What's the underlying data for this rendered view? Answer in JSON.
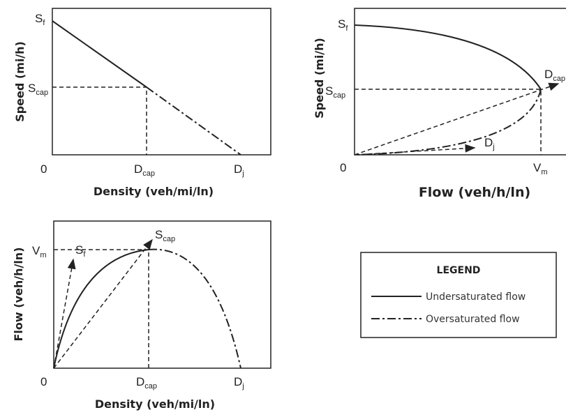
{
  "panels": [
    {
      "y_axis_label": "Speed (mi/h)",
      "x_axis_label": "Density (veh/mi/ln)",
      "origin": "0",
      "labels": [
        {
          "main": "S",
          "sub": "f"
        },
        {
          "main": "S",
          "sub": "cap"
        },
        {
          "main": "D",
          "sub": "cap"
        },
        {
          "main": "D",
          "sub": "j"
        }
      ]
    },
    {
      "y_axis_label": "Speed (mi/h)",
      "x_axis_label": "Flow (veh/h/ln)",
      "origin": "0",
      "labels": [
        {
          "main": "S",
          "sub": "f"
        },
        {
          "main": "S",
          "sub": "cap"
        },
        {
          "main": "D",
          "sub": "cap"
        },
        {
          "main": "D",
          "sub": "j"
        },
        {
          "main": "V",
          "sub": "m"
        }
      ]
    },
    {
      "y_axis_label": "Flow (veh/h/ln)",
      "x_axis_label": "Density (veh/mi/ln)",
      "origin": "0",
      "labels": [
        {
          "main": "V",
          "sub": "m"
        },
        {
          "main": "S",
          "sub": "f"
        },
        {
          "main": "S",
          "sub": "cap"
        },
        {
          "main": "D",
          "sub": "cap"
        },
        {
          "main": "D",
          "sub": "j"
        }
      ]
    }
  ],
  "legend": {
    "title": "LEGEND",
    "items": [
      "Undersaturated flow",
      "Oversaturated flow"
    ]
  }
}
